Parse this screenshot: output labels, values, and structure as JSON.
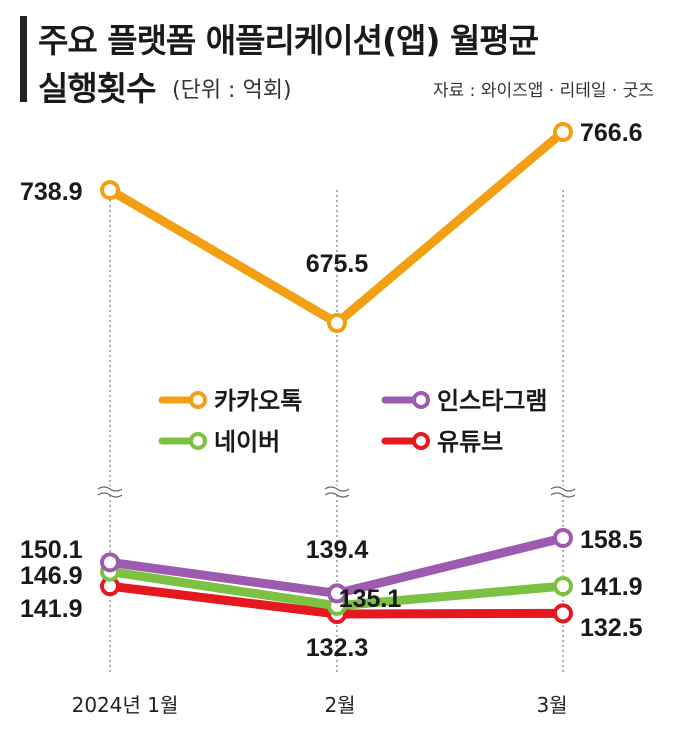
{
  "header": {
    "title_line1": "주요 플랫폼 애플리케이션(앱) 월평균",
    "title_line2": "실행횟수",
    "unit": "(단위 : 억회)",
    "source": "자료 : 와이즈앱 · 리테일 · 굿즈"
  },
  "chart_data": {
    "type": "line",
    "categories": [
      "2024년 1월",
      "2월",
      "3월"
    ],
    "series": [
      {
        "name": "카카오톡",
        "color": "#f29f13",
        "values": [
          738.9,
          675.5,
          766.6
        ],
        "labels": [
          "738.9",
          "675.5",
          "766.6"
        ]
      },
      {
        "name": "인스타그램",
        "color": "#9d5bb0",
        "values": [
          150.1,
          139.4,
          158.5
        ],
        "labels": [
          "150.1",
          "139.4",
          "158.5"
        ]
      },
      {
        "name": "네이버",
        "color": "#7cc242",
        "values": [
          146.9,
          135.1,
          141.9
        ],
        "labels": [
          "146.9",
          "135.1",
          "141.9"
        ]
      },
      {
        "name": "유튜브",
        "color": "#e5171f",
        "values": [
          141.9,
          132.3,
          132.5
        ],
        "labels": [
          "141.9",
          "132.3",
          "132.5"
        ]
      }
    ],
    "axis_break": true,
    "grid": "vertical dotted lines at each month",
    "legend_placement": "center"
  }
}
